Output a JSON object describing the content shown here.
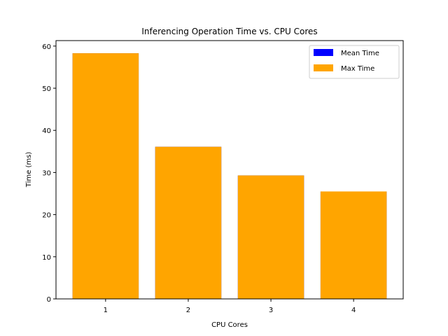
{
  "chart_data": {
    "type": "bar",
    "title": "Inferencing Operation Time vs. CPU Cores",
    "xlabel": "CPU Cores",
    "ylabel": "Time (ms)",
    "categories": [
      "1",
      "2",
      "3",
      "4"
    ],
    "ylim": [
      0,
      61.3
    ],
    "yticks": [
      0,
      10,
      20,
      30,
      40,
      50,
      60
    ],
    "series": [
      {
        "name": "Mean Time",
        "color": "#0000ff",
        "values": [
          58.3,
          36.1,
          29.3,
          25.5
        ]
      },
      {
        "name": "Max Time",
        "color": "#ffa500",
        "values": [
          58.3,
          36.1,
          29.3,
          25.5
        ]
      }
    ],
    "grid": false,
    "legend_position": "top-right"
  }
}
